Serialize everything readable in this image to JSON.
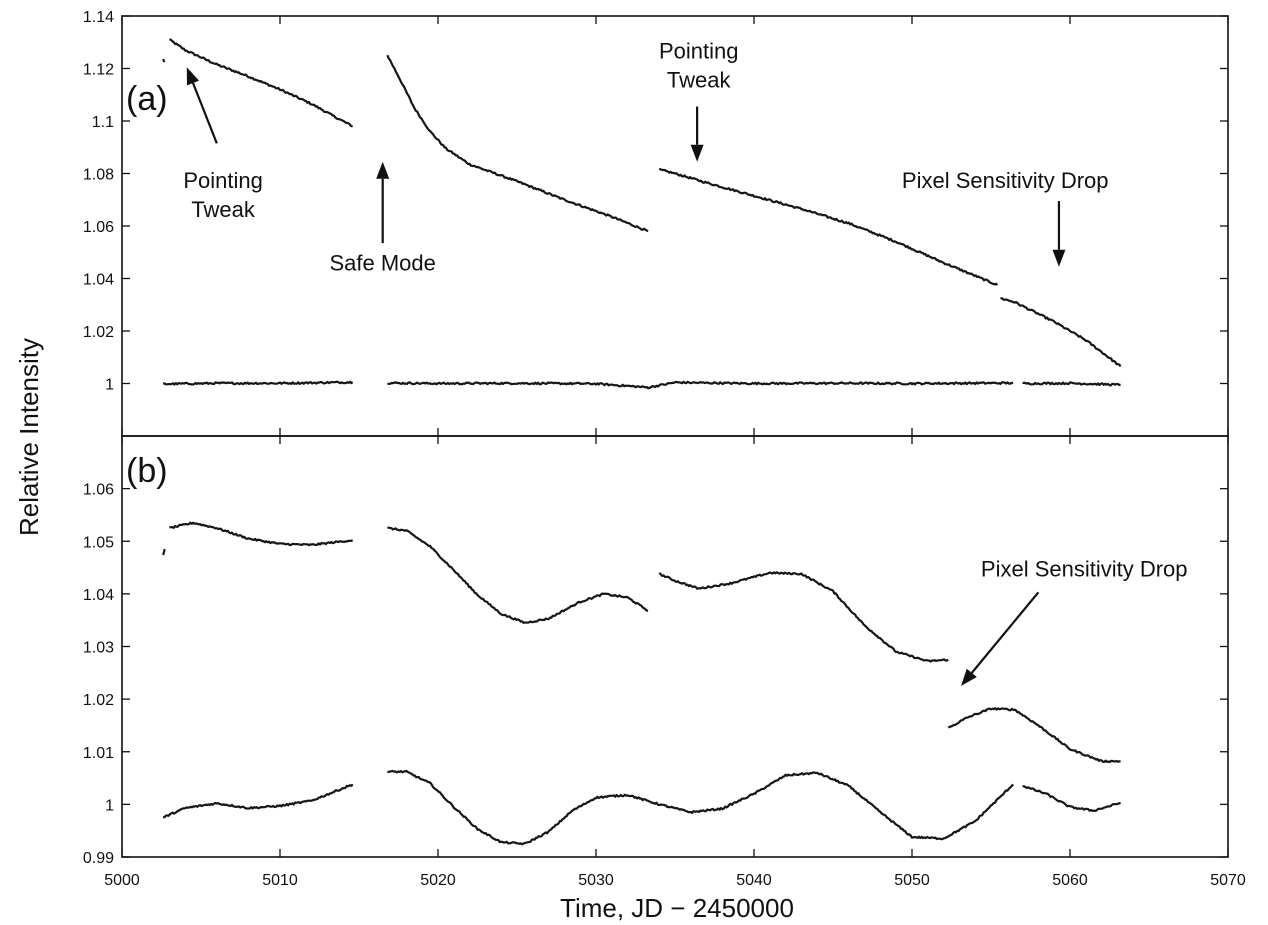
{
  "chart_data": [
    {
      "type": "line",
      "panel_label": "(a)",
      "xlabel": "Time, JD − 2450000",
      "ylabel": "Relative Intensity",
      "xlim": [
        5000,
        5070
      ],
      "ylim": [
        0.98,
        1.14
      ],
      "x_ticks": [
        5000,
        5010,
        5020,
        5030,
        5040,
        5050,
        5060,
        5070
      ],
      "x_tick_labels": [
        "5000",
        "5010",
        "5020",
        "5030",
        "5040",
        "5050",
        "5060",
        "5070"
      ],
      "y_ticks": [
        1,
        1.02,
        1.04,
        1.06,
        1.08,
        1.1,
        1.12,
        1.14
      ],
      "y_tick_labels": [
        "1",
        "1.02",
        "1.04",
        "1.06",
        "1.08",
        "1.1",
        "1.12",
        "1.14"
      ],
      "grid": false,
      "series": [
        {
          "segments": [
            {
              "x": [
                5002.6,
                5002.7
              ],
              "y": [
                1.1235,
                1.1225
              ]
            },
            {
              "x": [
                5003.0,
                5004.0,
                5006.0,
                5008.0,
                5010.0,
                5012.0,
                5013.5,
                5014.6
              ],
              "y": [
                1.131,
                1.127,
                1.1215,
                1.117,
                1.112,
                1.1065,
                1.1015,
                1.098
              ]
            },
            {
              "x": [
                5016.8,
                5017.5,
                5018.5,
                5019.5,
                5020.5,
                5022.0,
                5025.0,
                5028.0,
                5031.0,
                5033.3
              ],
              "y": [
                1.125,
                1.117,
                1.105,
                1.096,
                1.0895,
                1.0835,
                1.077,
                1.07,
                1.0635,
                1.058
              ]
            },
            {
              "x": [
                5034.0,
                5035.0,
                5037.0,
                5040.0,
                5043.0,
                5046.0,
                5049.0,
                5052.0,
                5055.0,
                5055.4
              ],
              "y": [
                1.0815,
                1.08,
                1.0765,
                1.0715,
                1.0665,
                1.061,
                1.054,
                1.046,
                1.0385,
                1.0375
              ]
            },
            {
              "x": [
                5055.6,
                5056.5,
                5057.5,
                5059.0,
                5061.0,
                5062.0,
                5063.2
              ],
              "y": [
                1.0325,
                1.031,
                1.028,
                1.0235,
                1.0165,
                1.012,
                1.0065
              ]
            }
          ]
        },
        {
          "segments": [
            {
              "x": [
                5002.6,
                5006.0,
                5010.0,
                5014.6
              ],
              "y": [
                0.9998,
                1.0001,
                1.0001,
                1.0005
              ]
            },
            {
              "x": [
                5016.8,
                5020.0,
                5025.0,
                5030.0,
                5033.3,
                5035.0,
                5040.0,
                5045.0,
                5050.0,
                5056.4
              ],
              "y": [
                1.0002,
                1.0,
                1.0001,
                0.9999,
                0.9985,
                1.0004,
                1.0,
                1.0001,
                1.0,
                1.0002
              ]
            },
            {
              "x": [
                5057.0,
                5060.0,
                5063.2
              ],
              "y": [
                1.0,
                1.0001,
                0.9995
              ]
            }
          ]
        }
      ],
      "annotations": [
        {
          "text": "Pointing Tweak",
          "lines": [
            "Pointing",
            "Tweak"
          ],
          "text_x": 5006.4,
          "text_y": 1.0745,
          "arrow_from": [
            5006.0,
            1.0915
          ],
          "arrow_to": [
            5004.1,
            1.1205
          ]
        },
        {
          "text": "Safe Mode",
          "lines": [
            "Safe Mode"
          ],
          "text_x": 5016.5,
          "text_y": 1.043,
          "arrow_from": [
            5016.5,
            1.0535
          ],
          "arrow_to": [
            5016.5,
            1.0845
          ]
        },
        {
          "text": "Pointing Tweak",
          "lines": [
            "Pointing",
            "Tweak"
          ],
          "text_x": 5036.5,
          "text_y": 1.1238,
          "arrow_from": [
            5036.4,
            1.1055
          ],
          "arrow_to": [
            5036.4,
            1.0845
          ]
        },
        {
          "text": "Pixel Sensitivity Drop",
          "lines": [
            "Pixel Sensitivity Drop"
          ],
          "text_x": 5055.9,
          "text_y": 1.0745,
          "arrow_from": [
            5059.3,
            1.0695
          ],
          "arrow_to": [
            5059.3,
            1.0445
          ]
        }
      ]
    },
    {
      "type": "line",
      "panel_label": "(b)",
      "xlim": [
        5000,
        5070
      ],
      "ylim": [
        0.99,
        1.07
      ],
      "x_ticks": [
        5000,
        5010,
        5020,
        5030,
        5040,
        5050,
        5060,
        5070
      ],
      "y_ticks": [
        0.99,
        1,
        1.01,
        1.02,
        1.03,
        1.04,
        1.05,
        1.06
      ],
      "y_tick_labels": [
        "0.99",
        "1",
        "1.01",
        "1.02",
        "1.03",
        "1.04",
        "1.05",
        "1.06"
      ],
      "grid": false,
      "series": [
        {
          "segments": [
            {
              "x": [
                5002.6,
                5002.7
              ],
              "y": [
                1.0475,
                1.0485
              ]
            },
            {
              "x": [
                5003.0,
                5004.5,
                5006.0,
                5008.0,
                5010.0,
                5012.0,
                5014.6
              ],
              "y": [
                1.0525,
                1.0535,
                1.0525,
                1.0505,
                1.0495,
                1.0493,
                1.0502
              ]
            },
            {
              "x": [
                5016.8,
                5018.0,
                5019.5,
                5021.0,
                5022.5,
                5024.0,
                5025.5,
                5027.0,
                5029.0,
                5030.5,
                5032.0,
                5033.3
              ],
              "y": [
                1.0525,
                1.052,
                1.049,
                1.0445,
                1.0398,
                1.0362,
                1.0345,
                1.0353,
                1.0385,
                1.04,
                1.0393,
                1.0368
              ]
            },
            {
              "x": [
                5034.0,
                5035.0,
                5036.5,
                5038.5,
                5041.0,
                5043.0,
                5045.0,
                5047.0,
                5049.0,
                5051.0,
                5052.3
              ],
              "y": [
                1.0438,
                1.0425,
                1.041,
                1.042,
                1.044,
                1.0438,
                1.0405,
                1.034,
                1.029,
                1.0272,
                1.0275
              ]
            },
            {
              "x": [
                5052.3,
                5053.5,
                5055.0,
                5056.5,
                5058.0,
                5060.0,
                5062.0,
                5063.2
              ],
              "y": [
                1.0145,
                1.0165,
                1.0182,
                1.018,
                1.015,
                1.0105,
                1.0082,
                1.0082
              ]
            }
          ]
        },
        {
          "segments": [
            {
              "x": [
                5002.6,
                5004.0,
                5006.0,
                5008.0,
                5010.0,
                5012.0,
                5014.6
              ],
              "y": [
                0.9975,
                0.9993,
                1.0002,
                0.9993,
                0.9997,
                1.0007,
                1.0038
              ]
            },
            {
              "x": [
                5016.8,
                5018.0,
                5019.5,
                5021.0,
                5022.5,
                5024.0,
                5025.5,
                5027.0,
                5028.5,
                5030.0,
                5032.0,
                5034.0,
                5036.0,
                5038.0,
                5040.0,
                5042.0,
                5044.0,
                5046.0,
                5048.0,
                5050.0,
                5052.0,
                5054.0,
                5056.4
              ],
              "y": [
                1.0062,
                1.0062,
                1.004,
                0.9995,
                0.9953,
                0.9928,
                0.9925,
                0.9948,
                0.9988,
                1.0013,
                1.0018,
                1.0,
                0.9985,
                0.9992,
                1.002,
                1.0055,
                1.006,
                1.0035,
                0.9985,
                0.9938,
                0.9935,
                0.9968,
                1.0038
              ]
            },
            {
              "x": [
                5057.0,
                5058.5,
                5060.0,
                5061.5,
                5063.2
              ],
              "y": [
                1.0035,
                1.002,
                0.9995,
                0.9988,
                1.0003
              ]
            }
          ]
        }
      ],
      "annotations": [
        {
          "text": "Pixel Sensitivity Drop",
          "lines": [
            "Pixel Sensitivity Drop"
          ],
          "text_x": 5060.9,
          "text_y": 1.0433,
          "arrow_from": [
            5058.0,
            1.0403
          ],
          "arrow_to": [
            5053.1,
            1.0225
          ]
        }
      ]
    }
  ]
}
